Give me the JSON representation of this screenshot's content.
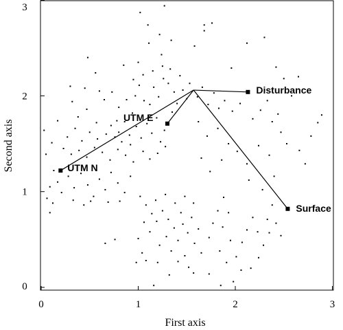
{
  "chart_data": {
    "type": "scatter",
    "title": "",
    "xlabel": "First axis",
    "ylabel": "Second axis",
    "xlim": [
      0,
      3
    ],
    "ylim": [
      0,
      3
    ],
    "x_ticks": [
      0,
      1,
      2,
      3
    ],
    "y_ticks": [
      0,
      1,
      2,
      3
    ],
    "grid": false,
    "hub": [
      1.57,
      2.06
    ],
    "vectors": [
      {
        "label": "UTM N",
        "x": 0.2,
        "y": 1.22
      },
      {
        "label": "UTM E",
        "x": 1.3,
        "y": 1.71
      },
      {
        "label": "Disturbance",
        "x": 2.13,
        "y": 2.04
      },
      {
        "label": "Surface",
        "x": 2.54,
        "y": 0.82
      }
    ],
    "points": [
      [
        1.02,
        2.87
      ],
      [
        1.27,
        2.94
      ],
      [
        1.1,
        2.74
      ],
      [
        1.68,
        2.74
      ],
      [
        0.48,
        2.4
      ],
      [
        0.56,
        2.24
      ],
      [
        0.85,
        2.32
      ],
      [
        1.0,
        2.35
      ],
      [
        1.24,
        2.43
      ],
      [
        1.11,
        2.55
      ],
      [
        1.34,
        2.58
      ],
      [
        1.22,
        2.64
      ],
      [
        1.58,
        2.52
      ],
      [
        1.68,
        2.68
      ],
      [
        1.76,
        2.76
      ],
      [
        2.12,
        2.55
      ],
      [
        2.3,
        2.61
      ],
      [
        2.42,
        2.3
      ],
      [
        2.5,
        2.18
      ],
      [
        2.58,
        2.0
      ],
      [
        2.65,
        2.2
      ],
      [
        2.3,
        2.06
      ],
      [
        1.96,
        2.29
      ],
      [
        0.3,
        2.1
      ],
      [
        0.32,
        1.94
      ],
      [
        0.45,
        2.08
      ],
      [
        0.6,
        2.05
      ],
      [
        0.38,
        1.78
      ],
      [
        0.47,
        1.86
      ],
      [
        0.57,
        1.72
      ],
      [
        0.65,
        1.96
      ],
      [
        0.73,
        2.04
      ],
      [
        0.8,
        1.88
      ],
      [
        0.78,
        1.74
      ],
      [
        0.88,
        1.96
      ],
      [
        0.94,
        1.82
      ],
      [
        1.01,
        2.11
      ],
      [
        1.06,
        1.95
      ],
      [
        0.97,
        2.0
      ],
      [
        1.12,
        1.91
      ],
      [
        1.16,
        2.09
      ],
      [
        1.21,
        1.99
      ],
      [
        1.26,
        2.18
      ],
      [
        1.31,
        2.13
      ],
      [
        1.37,
        2.04
      ],
      [
        1.4,
        1.92
      ],
      [
        1.46,
        2.06
      ],
      [
        1.5,
        1.97
      ],
      [
        1.43,
        2.21
      ],
      [
        1.33,
        2.28
      ],
      [
        1.25,
        2.31
      ],
      [
        1.15,
        2.26
      ],
      [
        1.05,
        2.22
      ],
      [
        0.95,
        2.17
      ],
      [
        1.53,
        2.13
      ],
      [
        1.61,
        1.99
      ],
      [
        1.66,
        2.09
      ],
      [
        1.72,
        1.91
      ],
      [
        1.78,
        2.03
      ],
      [
        1.83,
        1.87
      ],
      [
        1.89,
        1.95
      ],
      [
        1.97,
        1.84
      ],
      [
        2.05,
        1.92
      ],
      [
        2.18,
        1.76
      ],
      [
        2.26,
        1.85
      ],
      [
        2.38,
        1.73
      ],
      [
        2.47,
        1.62
      ],
      [
        2.44,
        1.81
      ],
      [
        2.33,
        1.95
      ],
      [
        0.72,
        1.69
      ],
      [
        0.8,
        1.62
      ],
      [
        0.86,
        1.73
      ],
      [
        0.91,
        1.59
      ],
      [
        0.98,
        1.68
      ],
      [
        1.03,
        1.56
      ],
      [
        1.09,
        1.71
      ],
      [
        1.14,
        1.61
      ],
      [
        1.19,
        1.77
      ],
      [
        1.27,
        1.64
      ],
      [
        1.35,
        1.83
      ],
      [
        1.23,
        1.52
      ],
      [
        0.92,
        1.49
      ],
      [
        0.83,
        1.52
      ],
      [
        0.76,
        1.57
      ],
      [
        0.67,
        1.6
      ],
      [
        0.58,
        1.55
      ],
      [
        0.5,
        1.62
      ],
      [
        0.42,
        1.53
      ],
      [
        0.35,
        1.66
      ],
      [
        0.27,
        1.57
      ],
      [
        0.23,
        1.45
      ],
      [
        0.31,
        1.39
      ],
      [
        0.39,
        1.43
      ],
      [
        0.47,
        1.36
      ],
      [
        0.55,
        1.46
      ],
      [
        0.63,
        1.41
      ],
      [
        0.71,
        1.33
      ],
      [
        0.79,
        1.44
      ],
      [
        0.87,
        1.38
      ],
      [
        0.95,
        1.31
      ],
      [
        1.05,
        1.42
      ],
      [
        1.12,
        1.34
      ],
      [
        1.2,
        1.4
      ],
      [
        1.28,
        1.47
      ],
      [
        0.13,
        1.22
      ],
      [
        0.17,
        1.1
      ],
      [
        0.21,
        0.99
      ],
      [
        0.28,
        1.16
      ],
      [
        0.34,
        1.04
      ],
      [
        0.41,
        1.19
      ],
      [
        0.48,
        1.07
      ],
      [
        0.54,
        0.95
      ],
      [
        0.6,
        1.13
      ],
      [
        0.66,
        1.02
      ],
      [
        0.72,
        1.2
      ],
      [
        0.79,
        1.09
      ],
      [
        0.86,
        0.99
      ],
      [
        0.92,
        1.16
      ],
      [
        0.09,
        1.05
      ],
      [
        0.06,
        0.93
      ],
      [
        0.12,
        0.88
      ],
      [
        0.33,
        0.91
      ],
      [
        0.44,
        0.86
      ],
      [
        0.51,
        0.9
      ],
      [
        0.69,
        0.89
      ],
      [
        0.05,
        1.39
      ],
      [
        0.11,
        1.51
      ],
      [
        0.03,
        1.64
      ],
      [
        0.17,
        1.74
      ],
      [
        0.09,
        0.78
      ],
      [
        1.62,
        1.73
      ],
      [
        1.71,
        1.58
      ],
      [
        1.82,
        1.66
      ],
      [
        1.93,
        1.5
      ],
      [
        2.02,
        1.42
      ],
      [
        1.86,
        1.33
      ],
      [
        1.74,
        1.21
      ],
      [
        1.65,
        1.35
      ],
      [
        2.12,
        1.29
      ],
      [
        2.24,
        1.48
      ],
      [
        2.35,
        1.38
      ],
      [
        2.53,
        1.5
      ],
      [
        2.66,
        1.43
      ],
      [
        2.78,
        1.58
      ],
      [
        2.85,
        1.72
      ],
      [
        2.89,
        1.8
      ],
      [
        2.72,
        1.29
      ],
      [
        2.14,
        1.12
      ],
      [
        2.28,
        1.02
      ],
      [
        2.4,
        1.16
      ],
      [
        1.02,
        0.95
      ],
      [
        1.08,
        0.86
      ],
      [
        1.14,
        0.77
      ],
      [
        1.06,
        0.68
      ],
      [
        1.12,
        0.58
      ],
      [
        1.19,
        0.69
      ],
      [
        1.25,
        0.8
      ],
      [
        1.31,
        0.71
      ],
      [
        1.37,
        0.62
      ],
      [
        1.29,
        0.53
      ],
      [
        1.22,
        0.44
      ],
      [
        1.34,
        0.38
      ],
      [
        1.41,
        0.49
      ],
      [
        1.46,
        0.66
      ],
      [
        1.51,
        0.57
      ],
      [
        1.44,
        0.78
      ],
      [
        1.18,
        0.91
      ],
      [
        1.28,
        0.97
      ],
      [
        1.38,
        0.88
      ],
      [
        1.48,
        0.95
      ],
      [
        1.57,
        0.88
      ],
      [
        1.55,
        0.73
      ],
      [
        1.62,
        0.61
      ],
      [
        1.58,
        0.46
      ],
      [
        1.48,
        0.33
      ],
      [
        1.41,
        0.27
      ],
      [
        1.52,
        0.21
      ],
      [
        1.65,
        0.36
      ],
      [
        1.73,
        0.52
      ],
      [
        1.77,
        0.67
      ],
      [
        1.82,
        0.8
      ],
      [
        1.88,
        0.94
      ],
      [
        1.93,
        0.78
      ],
      [
        1.87,
        0.63
      ],
      [
        1.95,
        0.49
      ],
      [
        1.84,
        0.38
      ],
      [
        1.91,
        0.26
      ],
      [
        2.01,
        0.32
      ],
      [
        2.07,
        0.47
      ],
      [
        2.12,
        0.6
      ],
      [
        2.18,
        0.73
      ],
      [
        2.23,
        0.58
      ],
      [
        2.29,
        0.44
      ],
      [
        2.24,
        0.31
      ],
      [
        2.16,
        0.2
      ],
      [
        2.06,
        0.18
      ],
      [
        2.33,
        0.71
      ],
      [
        2.38,
        0.86
      ],
      [
        2.42,
        0.67
      ],
      [
        2.47,
        0.54
      ],
      [
        2.35,
        0.57
      ],
      [
        1.0,
        0.51
      ],
      [
        1.04,
        0.36
      ],
      [
        0.98,
        0.26
      ],
      [
        1.08,
        0.28
      ],
      [
        0.66,
        0.46
      ],
      [
        0.76,
        0.5
      ],
      [
        0.81,
        0.9
      ],
      [
        1.32,
        0.13
      ],
      [
        1.2,
        0.26
      ],
      [
        1.57,
        0.15
      ],
      [
        1.73,
        0.14
      ],
      [
        1.98,
        0.06
      ],
      [
        1.16,
        0.02
      ],
      [
        1.85,
        0.02
      ]
    ]
  }
}
